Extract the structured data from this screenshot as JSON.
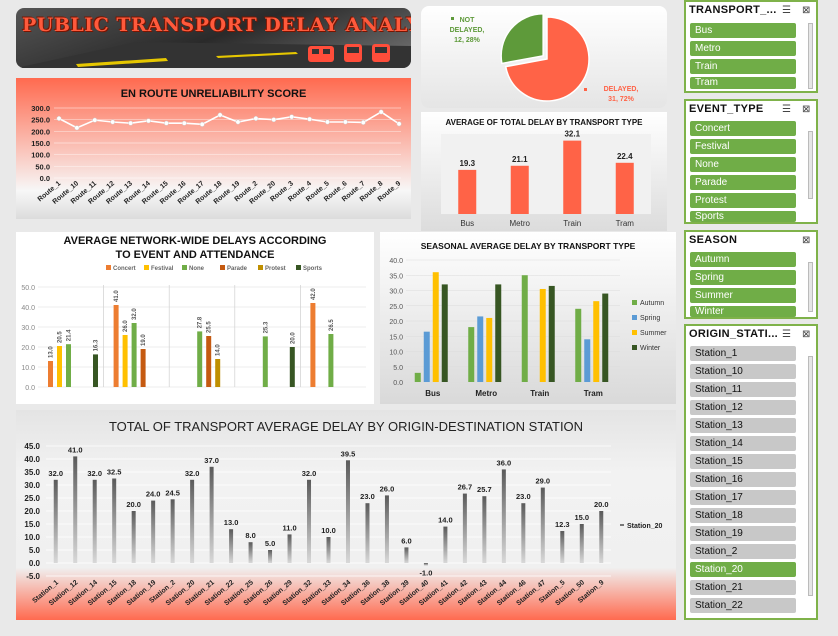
{
  "header": {
    "title": "PUBLIC TRANSPORT DELAY ANALYSIS"
  },
  "pie": {
    "type": "pie",
    "slices": [
      {
        "label": "NOT DELAYED",
        "value": 12,
        "percent": "28%",
        "color": "#5e9a3a"
      },
      {
        "label": "DELAYED",
        "value": 31,
        "percent": "72%",
        "color": "#ff6347"
      }
    ]
  },
  "unreliability": {
    "type": "line",
    "title": "EN ROUTE UNRELIABILITY SCORE",
    "categories": [
      "Route_1",
      "Route_10",
      "Route_11",
      "Route_12",
      "Route_13",
      "Route_14",
      "Route_15",
      "Route_16",
      "Route_17",
      "Route_18",
      "Route_19",
      "Route_2",
      "Route_20",
      "Route_3",
      "Route_4",
      "Route_5",
      "Route_6",
      "Route_7",
      "Route_8",
      "Route_9"
    ],
    "values": [
      255,
      215,
      248,
      240,
      235,
      245,
      235,
      235,
      230,
      270,
      240,
      255,
      250,
      262,
      252,
      240,
      240,
      238,
      283,
      232
    ],
    "yticks": [
      "0.0",
      "50.0",
      "100.0",
      "150.0",
      "200.0",
      "250.0",
      "300.0"
    ],
    "ylim": [
      0,
      300
    ]
  },
  "avg_total": {
    "type": "bar",
    "title": "AVERAGE OF TOTAL DELAY BY TRANSPORT TYPE",
    "categories": [
      "Bus",
      "Metro",
      "Train",
      "Tram"
    ],
    "values": [
      19.3,
      21.1,
      32.1,
      22.4
    ],
    "labels": [
      "19.3",
      "21.1",
      "32.1",
      "22.4"
    ],
    "ylim": [
      0,
      35
    ],
    "color": "#ff6347"
  },
  "network": {
    "type": "bar",
    "title_line1": "AVERAGE NETWORK-WIDE DELAYS ACCORDING",
    "title_line2": "TO EVENT AND ATTENDANCE",
    "legend": [
      {
        "name": "Concert",
        "color": "#ed7d31"
      },
      {
        "name": "Festival",
        "color": "#ffc000"
      },
      {
        "name": "None",
        "color": "#70ad47"
      },
      {
        "name": "Parade",
        "color": "#c55a11"
      },
      {
        "name": "Protest",
        "color": "#bf8f00"
      },
      {
        "name": "Sports",
        "color": "#375623"
      }
    ],
    "yticks": [
      "0.0",
      "10.0",
      "20.0",
      "30.0",
      "40.0",
      "50.0"
    ],
    "ylim": [
      0,
      50
    ],
    "bars": [
      {
        "group": 0,
        "series": "Concert",
        "value": 13.0,
        "label": "13.0"
      },
      {
        "group": 0,
        "series": "Festival",
        "value": 20.5,
        "label": "20.5"
      },
      {
        "group": 0,
        "series": "None",
        "value": 21.4,
        "label": "21.4"
      },
      {
        "group": 0,
        "series": "Sports",
        "value": 16.3,
        "label": "16.3"
      },
      {
        "group": 1,
        "series": "Concert",
        "value": 41.0,
        "label": "41.0"
      },
      {
        "group": 1,
        "series": "Festival",
        "value": 26.0,
        "label": "26.0"
      },
      {
        "group": 1,
        "series": "None",
        "value": 32.0,
        "label": "32.0"
      },
      {
        "group": 1,
        "series": "Parade",
        "value": 19.0,
        "label": "19.0"
      },
      {
        "group": 2,
        "series": "None",
        "value": 27.8,
        "label": "27.8"
      },
      {
        "group": 2,
        "series": "Parade",
        "value": 25.5,
        "label": "25.5"
      },
      {
        "group": 2,
        "series": "Protest",
        "value": 14.0,
        "label": "14.0"
      },
      {
        "group": 3,
        "series": "None",
        "value": 25.3,
        "label": "25.3"
      },
      {
        "group": 3,
        "series": "Sports",
        "value": 20.0,
        "label": "20.0"
      },
      {
        "group": 4,
        "series": "Concert",
        "value": 42.0,
        "label": "42.0"
      },
      {
        "group": 4,
        "series": "None",
        "value": 26.5,
        "label": "26.5"
      }
    ]
  },
  "seasonal": {
    "type": "bar",
    "title": "SEASONAL AVERAGE DELAY BY TRANSPORT TYPE",
    "categories": [
      "Bus",
      "Metro",
      "Train",
      "Tram"
    ],
    "yticks": [
      "0.0",
      "5.0",
      "10.0",
      "15.0",
      "20.0",
      "25.0",
      "30.0",
      "35.0",
      "40.0"
    ],
    "ylim": [
      0,
      40
    ],
    "series": [
      {
        "name": "Autumn",
        "color": "#70ad47",
        "values": [
          3,
          18,
          35,
          24
        ]
      },
      {
        "name": "Spring",
        "color": "#5b9bd5",
        "values": [
          16.5,
          21.5,
          0,
          14
        ]
      },
      {
        "name": "Summer",
        "color": "#ffc000",
        "values": [
          36,
          21,
          30.5,
          26.5
        ]
      },
      {
        "name": "Winter",
        "color": "#375623",
        "values": [
          32,
          32,
          31.5,
          29
        ]
      }
    ]
  },
  "od": {
    "type": "bar",
    "title": "TOTAL OF TRANSPORT AVERAGE DELAY BY ORIGIN-DESTINATION STATION",
    "legend": "Station_20",
    "categories": [
      "Station_1",
      "Station_12",
      "Station_14",
      "Station_15",
      "Station_18",
      "Station_19",
      "Station_2",
      "Station_20",
      "Station_21",
      "Station_22",
      "Station_25",
      "Station_26",
      "Station_29",
      "Station_32",
      "Station_33",
      "Station_34",
      "Station_36",
      "Station_38",
      "Station_39",
      "Station_40",
      "Station_41",
      "Station_42",
      "Station_43",
      "Station_44",
      "Station_46",
      "Station_47",
      "Station_5",
      "Station_50",
      "Station_9"
    ],
    "values": [
      32.0,
      41.0,
      32.0,
      32.5,
      20.0,
      24.0,
      24.5,
      32.0,
      37.0,
      13.0,
      8.0,
      5.0,
      11.0,
      32.0,
      10.0,
      39.5,
      23.0,
      26.0,
      6.0,
      -1.0,
      14.0,
      26.7,
      25.7,
      36.0,
      23.0,
      29.0,
      12.3,
      15.0,
      20.0
    ],
    "labels": [
      "32.0",
      "41.0",
      "32.0",
      "32.5",
      "20.0",
      "24.0",
      "24.5",
      "32.0",
      "37.0",
      "13.0",
      "8.0",
      "5.0",
      "11.0",
      "32.0",
      "10.0",
      "39.5",
      "23.0",
      "26.0",
      "6.0",
      "-1.0",
      "14.0",
      "26.7",
      "25.7",
      "36.0",
      "23.0",
      "29.0",
      "12.3",
      "15.0",
      "20.0"
    ],
    "yticks": [
      "-5.0",
      "0.0",
      "5.0",
      "10.0",
      "15.0",
      "20.0",
      "25.0",
      "30.0",
      "35.0",
      "40.0",
      "45.0"
    ],
    "ylim": [
      -5,
      45
    ]
  },
  "slicers": {
    "transport": {
      "title": "TRANSPORT_...",
      "items": [
        "Bus",
        "Metro",
        "Train",
        "Tram"
      ]
    },
    "event": {
      "title": "EVENT_TYPE",
      "items": [
        "Concert",
        "Festival",
        "None",
        "Parade",
        "Protest",
        "Sports"
      ]
    },
    "season": {
      "title": "SEASON",
      "items": [
        "Autumn",
        "Spring",
        "Summer",
        "Winter"
      ]
    },
    "origin": {
      "title": "ORIGIN_STATI...",
      "items": [
        "Station_1",
        "Station_10",
        "Station_11",
        "Station_12",
        "Station_13",
        "Station_14",
        "Station_15",
        "Station_16",
        "Station_17",
        "Station_18",
        "Station_19",
        "Station_2",
        "Station_20",
        "Station_21",
        "Station_22"
      ],
      "selected": "Station_20"
    }
  },
  "icons": {
    "filter_multi": "multi-select-icon",
    "filter_clear": "clear-filter-icon"
  }
}
